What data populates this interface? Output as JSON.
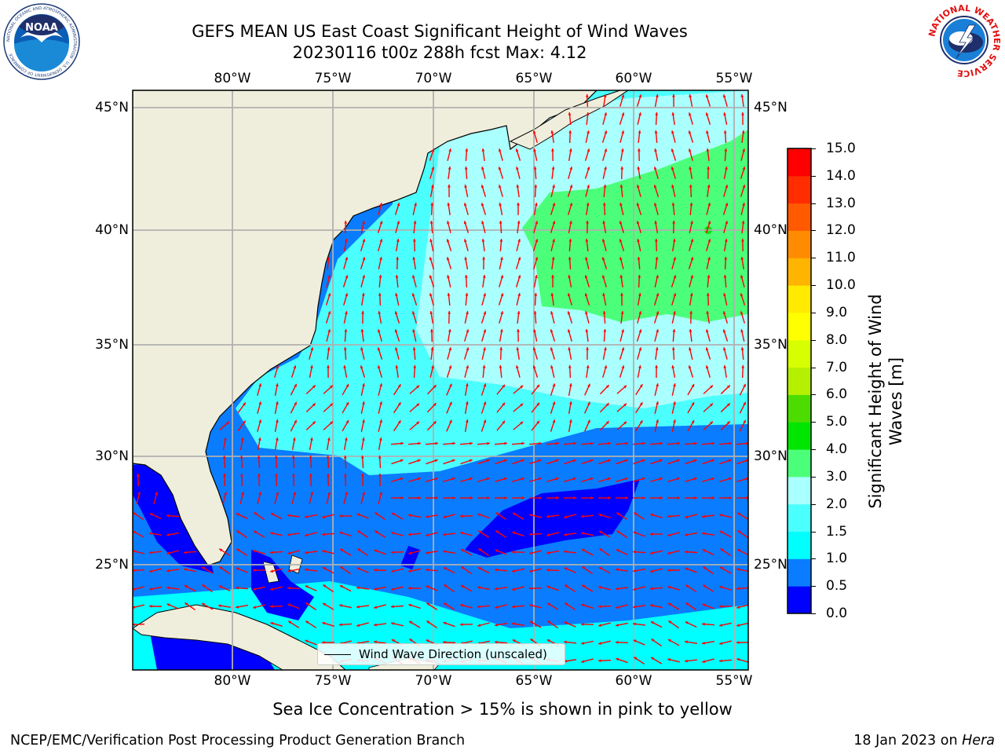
{
  "title_line1": "GEFS MEAN US East Coast Significant Height of Wind Waves",
  "title_line2": "20230116 t00z 288h fcst   Max: 4.12",
  "subtitle": "Sea Ice Concentration > 15% is shown in pink to yellow",
  "footer_left": "NCEP/EMC/Verification Post Processing Product Generation Branch",
  "footer_date": "18 Jan 2023 on",
  "footer_host": "Hera",
  "legend_label": "Wind Wave Direction (unscaled)",
  "colorbar": {
    "label_line1": "Significant Height of Wind",
    "label_line2": "Waves [m]",
    "ticks": [
      "0.0",
      "0.5",
      "1.0",
      "1.5",
      "2.0",
      "3.0",
      "4.0",
      "5.0",
      "6.0",
      "7.0",
      "8.0",
      "9.0",
      "10.0",
      "11.0",
      "12.0",
      "13.0",
      "14.0",
      "15.0"
    ],
    "colors": [
      "#0000ff",
      "#0a7cff",
      "#00ffff",
      "#4bffff",
      "#aaffff",
      "#4cff7a",
      "#00e600",
      "#4cdc00",
      "#b4f000",
      "#d8ff00",
      "#ffff00",
      "#ffea00",
      "#ffb400",
      "#ff8c00",
      "#ff5a00",
      "#ff2d00",
      "#ff0000"
    ]
  },
  "axes": {
    "lon_labels": [
      "80°W",
      "75°W",
      "70°W",
      "65°W",
      "60°W",
      "55°W"
    ],
    "lat_labels": [
      "45°N",
      "40°N",
      "35°N",
      "30°N",
      "25°N"
    ]
  },
  "colors": {
    "land": "#efeedc",
    "arrow": "#ff0000",
    "grid": "#b0b0b0"
  },
  "logos": {
    "noaa_text": "NOAA",
    "noaa_ring_text": "NATIONAL OCEANIC AND ATMOSPHERIC ADMINISTRATION · U.S. DEPARTMENT OF COMMERCE",
    "nws_ring_text": "NATIONAL WEATHER SERVICE"
  }
}
